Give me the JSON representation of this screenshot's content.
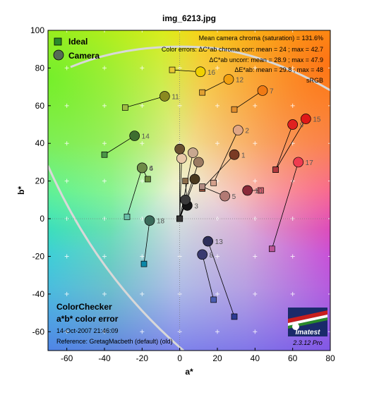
{
  "chart_data": {
    "type": "scatter",
    "title": "img_6213.jpg",
    "xlabel": "a*",
    "ylabel": "b*",
    "xlim": [
      -70,
      80
    ],
    "ylim": [
      -70,
      100
    ],
    "xticks": [
      -60,
      -40,
      -20,
      0,
      20,
      40,
      60,
      80
    ],
    "yticks": [
      -60,
      -40,
      -20,
      0,
      20,
      40,
      60,
      80,
      100
    ],
    "grid": true,
    "legend": {
      "placement": "top-left",
      "ideal_label": "Ideal",
      "camera_label": "Camera"
    },
    "stats": [
      "Mean camera chroma (saturation) = 131.6%",
      "Color errors: ΔC*ab chroma corr:  mean = 24 ;  max = 42.7",
      "ΔC*ab uncorr:  mean = 28.9 ;  max = 47.9",
      "ΔE*ab:  mean = 29.8 ;  max = 48",
      "sRGB"
    ],
    "caption": {
      "title": "ColorChecker",
      "subtitle": "a*b* color error",
      "date": "14-Oct-2007 21:46:09",
      "reference": "Reference: GretagMacbeth (default) (old)"
    },
    "logo": {
      "text": "Imatest",
      "version": "2.3.12  Pro"
    },
    "patches": [
      {
        "id": "1",
        "ideal": [
          12,
          16
        ],
        "camera": [
          29,
          34
        ],
        "ideal_color": "#8b4a36",
        "camera_color": "#7a3a24"
      },
      {
        "id": "2",
        "ideal": [
          18,
          19
        ],
        "camera": [
          31,
          47
        ],
        "ideal_color": "#d3a08c",
        "camera_color": "#e0a684"
      },
      {
        "id": "3",
        "ideal": [
          3,
          20
        ],
        "camera": [
          4,
          7
        ],
        "ideal_color": "#8a6d4a",
        "camera_color": "#141414"
      },
      {
        "id": "4",
        "ideal": [
          -17,
          21
        ],
        "camera": [
          -20,
          27
        ],
        "ideal_color": "#6a8a3c",
        "camera_color": "#6e8a48"
      },
      {
        "id": "5",
        "ideal": [
          12,
          17
        ],
        "camera": [
          24,
          12
        ],
        "ideal_color": "#b08a82",
        "camera_color": "#b27a74"
      },
      {
        "id": "6",
        "ideal": [
          -28,
          1
        ],
        "camera": [
          -20,
          27
        ],
        "ideal_color": "#6abfa8",
        "camera_color": "#6e8a48"
      },
      {
        "id": "7",
        "ideal": [
          29,
          58
        ],
        "camera": [
          44,
          68
        ],
        "ideal_color": "#e28f2e",
        "camera_color": "#f07a14"
      },
      {
        "id": "8",
        "ideal": [
          18,
          -43
        ],
        "camera": [
          12,
          -19
        ],
        "ideal_color": "#4a5cb0",
        "camera_color": "#3a3a70"
      },
      {
        "id": "9",
        "ideal": [
          51,
          26
        ],
        "camera": [
          60,
          50
        ],
        "ideal_color": "#c35a62",
        "camera_color": "#e02020"
      },
      {
        "id": "10",
        "ideal": [
          43,
          15
        ],
        "camera": [
          36,
          15
        ],
        "ideal_color": "#d45c6c",
        "camera_color": "#8a2a3a"
      },
      {
        "id": "11",
        "ideal": [
          -29,
          59
        ],
        "camera": [
          -8,
          65
        ],
        "ideal_color": "#9ebc44",
        "camera_color": "#8a8a20"
      },
      {
        "id": "12",
        "ideal": [
          12,
          67
        ],
        "camera": [
          26,
          74
        ],
        "ideal_color": "#e0a032",
        "camera_color": "#f2a010"
      },
      {
        "id": "13",
        "ideal": [
          29,
          -52
        ],
        "camera": [
          15,
          -12
        ],
        "ideal_color": "#2c3a92",
        "camera_color": "#2e2e5a"
      },
      {
        "id": "14",
        "ideal": [
          -40,
          34
        ],
        "camera": [
          -24,
          44
        ],
        "ideal_color": "#4a9446",
        "camera_color": "#3e6e30"
      },
      {
        "id": "15",
        "ideal": [
          51,
          26
        ],
        "camera": [
          67,
          53
        ],
        "ideal_color": "#b0383e",
        "camera_color": "#e01818"
      },
      {
        "id": "16",
        "ideal": [
          -4,
          79
        ],
        "camera": [
          11,
          78
        ],
        "ideal_color": "#e8c834",
        "camera_color": "#f0d000"
      },
      {
        "id": "17",
        "ideal": [
          49,
          -16
        ],
        "camera": [
          63,
          30
        ],
        "ideal_color": "#bc5498",
        "camera_color": "#f03c50"
      },
      {
        "id": "18",
        "ideal": [
          -19,
          -24
        ],
        "camera": [
          -16,
          -1
        ],
        "ideal_color": "#0a88a8",
        "camera_color": "#3a6a5a"
      },
      {
        "id": "",
        "ideal": [
          0,
          0
        ],
        "camera": [
          1,
          32
        ],
        "ideal_color": "#f2f2f2",
        "camera_color": "#e8c8a8"
      },
      {
        "id": "",
        "ideal": [
          0,
          0
        ],
        "camera": [
          7,
          35
        ],
        "ideal_color": "#c8c8c8",
        "camera_color": "#c8a890"
      },
      {
        "id": "",
        "ideal": [
          0,
          0
        ],
        "camera": [
          10,
          30
        ],
        "ideal_color": "#a0a0a0",
        "camera_color": "#9a7a62"
      },
      {
        "id": "",
        "ideal": [
          0,
          0
        ],
        "camera": [
          0,
          37
        ],
        "ideal_color": "#7a7a7a",
        "camera_color": "#6a5030"
      },
      {
        "id": "",
        "ideal": [
          0,
          0
        ],
        "camera": [
          8,
          21
        ],
        "ideal_color": "#555555",
        "camera_color": "#4a3a20"
      },
      {
        "id": "",
        "ideal": [
          0,
          0
        ],
        "camera": [
          3,
          10
        ],
        "ideal_color": "#343434",
        "camera_color": "#3a3a3a"
      }
    ]
  }
}
